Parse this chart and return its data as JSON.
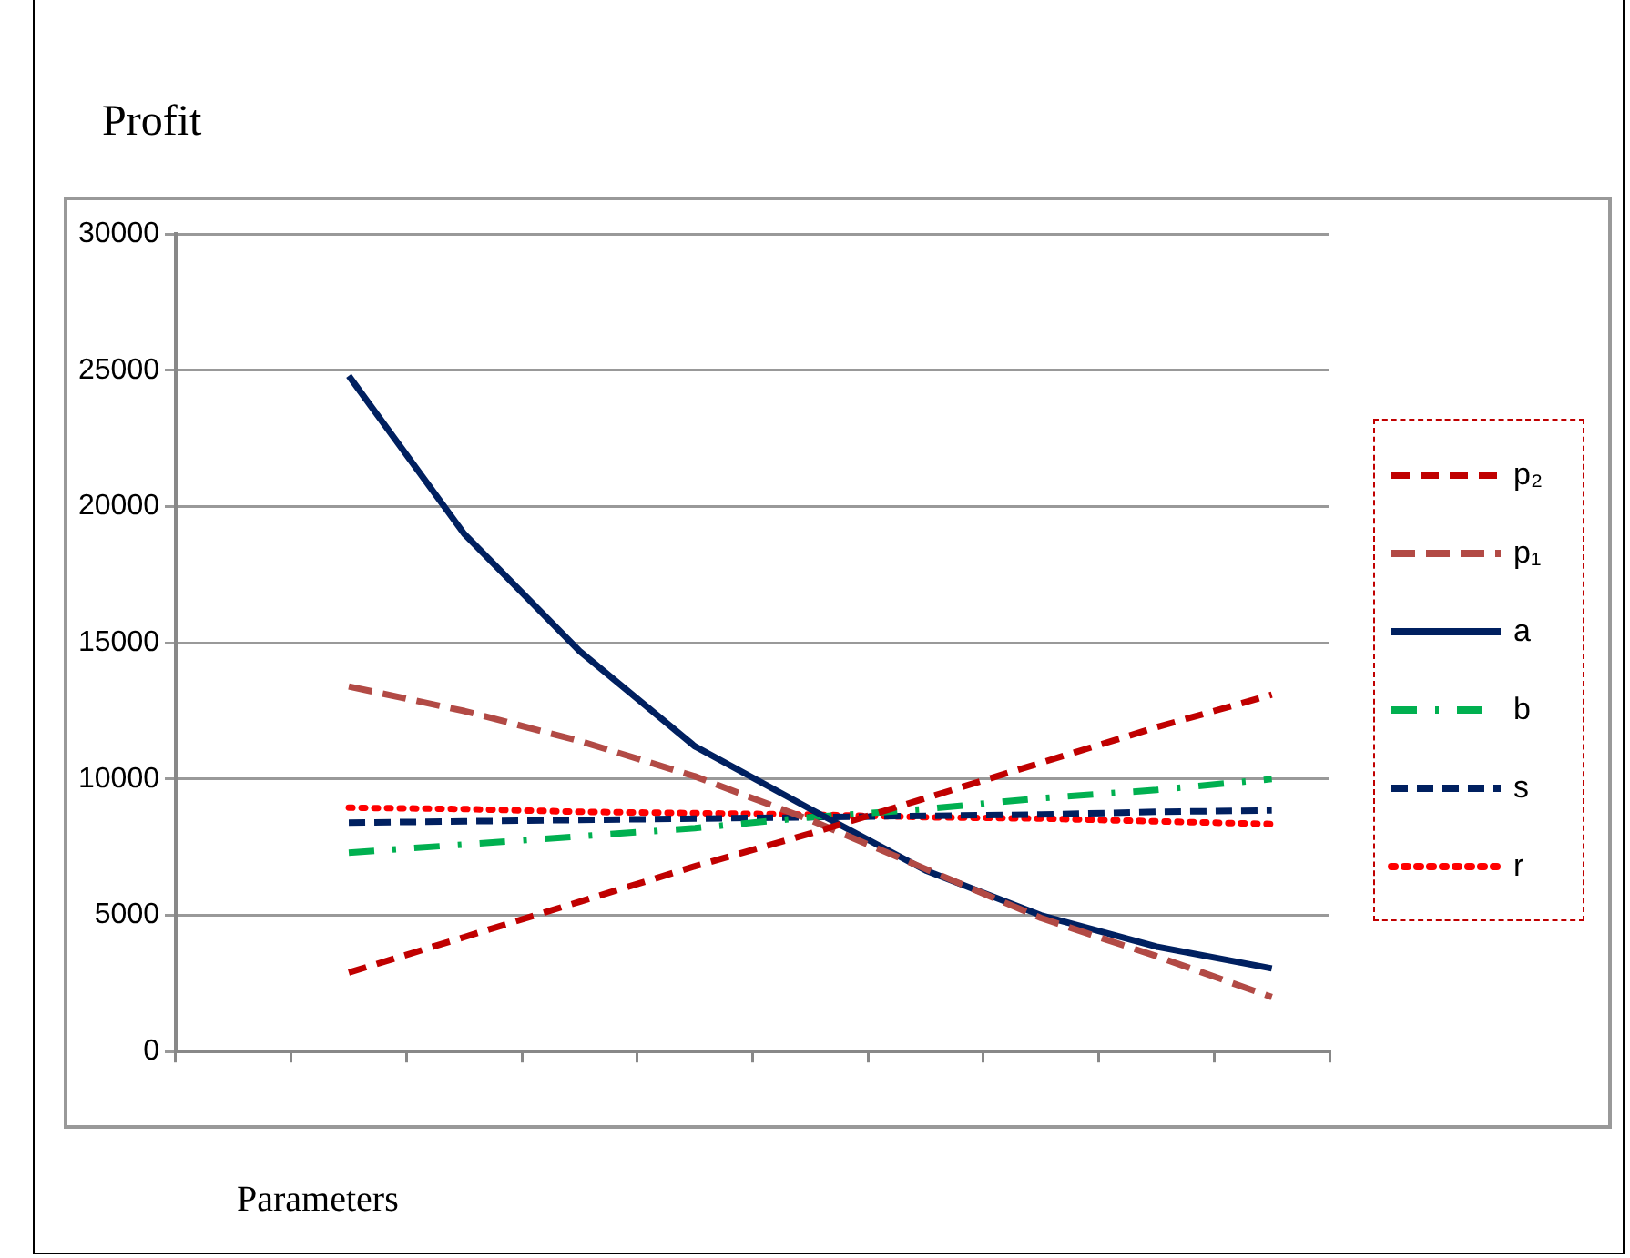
{
  "chart_data": {
    "type": "line",
    "ylabel": "Profit",
    "xlabel": "Parameters",
    "categories": [
      null,
      null,
      null,
      null,
      null,
      null,
      null,
      null,
      null,
      null
    ],
    "ylim": [
      0,
      30000
    ],
    "yticks": [
      0,
      5000,
      10000,
      15000,
      20000,
      25000,
      30000
    ],
    "grid": "y",
    "legend": "right",
    "marker": "none",
    "series": [
      {
        "name": "p₂",
        "color": "#c00000",
        "line_style": "dashed",
        "values": [
          null,
          2900,
          4200,
          5500,
          6800,
          8000,
          9300,
          10600,
          11900,
          13100
        ]
      },
      {
        "name": "p₁",
        "color": "#b24a45",
        "line_style": "dashed",
        "values": [
          null,
          13400,
          12500,
          11400,
          10100,
          8500,
          6700,
          4900,
          3500,
          2000
        ]
      },
      {
        "name": "a",
        "color": "#002060",
        "line_style": "solid",
        "values": [
          null,
          24800,
          19000,
          14700,
          11200,
          8900,
          6650,
          5000,
          3850,
          3050
        ]
      },
      {
        "name": "b",
        "color": "#00b050",
        "line_style": "dashed",
        "values": [
          null,
          7300,
          7600,
          7900,
          8200,
          8600,
          8900,
          9300,
          9600,
          10000
        ]
      },
      {
        "name": "s",
        "color": "#002060",
        "line_style": "dashed",
        "values": [
          null,
          8400,
          8450,
          8500,
          8550,
          8600,
          8650,
          8700,
          8800,
          8850
        ]
      },
      {
        "name": "r",
        "color": "#ff0000",
        "line_style": "dotted",
        "values": [
          null,
          8950,
          8900,
          8800,
          8750,
          8700,
          8600,
          8550,
          8450,
          8350
        ]
      }
    ]
  }
}
